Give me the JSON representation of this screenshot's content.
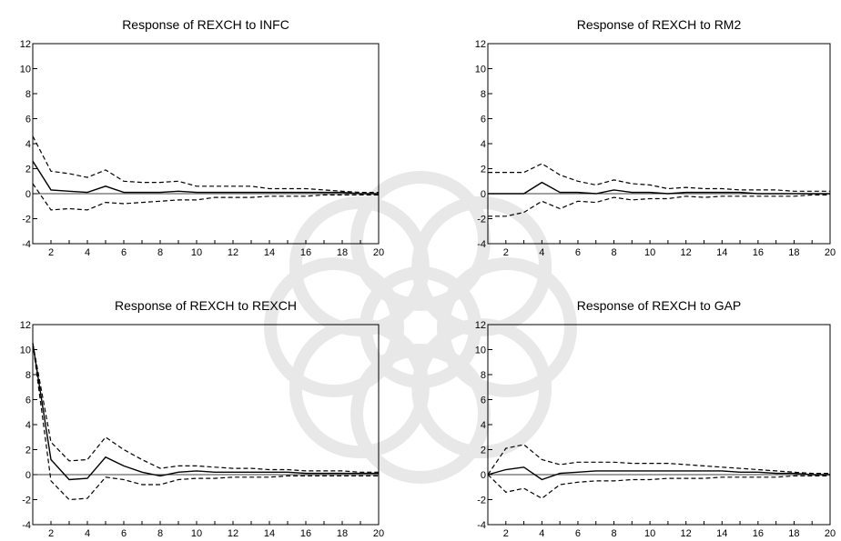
{
  "chart_data": [
    {
      "type": "line",
      "title": "Response of REXCH to INFC",
      "xlim": [
        1,
        20
      ],
      "ylim": [
        -4,
        12
      ],
      "xticks": [
        2,
        4,
        6,
        8,
        10,
        12,
        14,
        16,
        18,
        20
      ],
      "yticks": [
        -4,
        -2,
        0,
        2,
        4,
        6,
        8,
        10,
        12
      ],
      "grid": false,
      "x": [
        1,
        2,
        3,
        4,
        5,
        6,
        7,
        8,
        9,
        10,
        11,
        12,
        13,
        14,
        15,
        16,
        17,
        18,
        19,
        20
      ],
      "series": [
        {
          "style": "dashed",
          "values": [
            4.6,
            1.8,
            1.6,
            1.3,
            1.9,
            1.0,
            0.9,
            0.9,
            1.0,
            0.6,
            0.6,
            0.6,
            0.6,
            0.4,
            0.4,
            0.4,
            0.3,
            0.2,
            0.1,
            0.1
          ]
        },
        {
          "style": "solid",
          "values": [
            2.6,
            0.3,
            0.2,
            0.1,
            0.6,
            0.1,
            0.1,
            0.1,
            0.2,
            0.1,
            0.1,
            0.1,
            0.1,
            0.1,
            0.1,
            0.1,
            0.1,
            0.1,
            0.0,
            0.0
          ]
        },
        {
          "style": "dashed",
          "values": [
            0.8,
            -1.3,
            -1.2,
            -1.3,
            -0.7,
            -0.8,
            -0.7,
            -0.6,
            -0.5,
            -0.5,
            -0.3,
            -0.3,
            -0.3,
            -0.2,
            -0.2,
            -0.2,
            -0.1,
            -0.1,
            -0.1,
            -0.1
          ]
        }
      ]
    },
    {
      "type": "line",
      "title": "Response of REXCH to RM2",
      "xlim": [
        1,
        20
      ],
      "ylim": [
        -4,
        12
      ],
      "xticks": [
        2,
        4,
        6,
        8,
        10,
        12,
        14,
        16,
        18,
        20
      ],
      "yticks": [
        -4,
        -2,
        0,
        2,
        4,
        6,
        8,
        10,
        12
      ],
      "grid": false,
      "x": [
        1,
        2,
        3,
        4,
        5,
        6,
        7,
        8,
        9,
        10,
        11,
        12,
        13,
        14,
        15,
        16,
        17,
        18,
        19,
        20
      ],
      "series": [
        {
          "style": "dashed",
          "values": [
            1.7,
            1.7,
            1.7,
            2.4,
            1.5,
            1.0,
            0.7,
            1.1,
            0.8,
            0.7,
            0.4,
            0.5,
            0.4,
            0.4,
            0.3,
            0.3,
            0.3,
            0.2,
            0.2,
            0.2
          ]
        },
        {
          "style": "solid",
          "values": [
            0.0,
            0.0,
            0.0,
            0.9,
            0.1,
            0.1,
            0.0,
            0.3,
            0.1,
            0.1,
            0.0,
            0.1,
            0.1,
            0.1,
            0.1,
            0.0,
            0.0,
            0.0,
            0.0,
            0.0
          ]
        },
        {
          "style": "dashed",
          "values": [
            -1.8,
            -1.8,
            -1.5,
            -0.6,
            -1.2,
            -0.6,
            -0.7,
            -0.3,
            -0.5,
            -0.4,
            -0.4,
            -0.2,
            -0.3,
            -0.2,
            -0.2,
            -0.2,
            -0.2,
            -0.2,
            -0.1,
            -0.1
          ]
        }
      ]
    },
    {
      "type": "line",
      "title": "Response of REXCH to REXCH",
      "xlim": [
        1,
        20
      ],
      "ylim": [
        -4,
        12
      ],
      "xticks": [
        2,
        4,
        6,
        8,
        10,
        12,
        14,
        16,
        18,
        20
      ],
      "yticks": [
        -4,
        -2,
        0,
        2,
        4,
        6,
        8,
        10,
        12
      ],
      "grid": false,
      "x": [
        1,
        2,
        3,
        4,
        5,
        6,
        7,
        8,
        9,
        10,
        11,
        12,
        13,
        14,
        15,
        16,
        17,
        18,
        19,
        20
      ],
      "series": [
        {
          "style": "dashed",
          "values": [
            10.5,
            2.6,
            1.1,
            1.2,
            3.0,
            2.0,
            1.2,
            0.5,
            0.7,
            0.7,
            0.6,
            0.5,
            0.5,
            0.4,
            0.4,
            0.3,
            0.3,
            0.3,
            0.2,
            0.2
          ]
        },
        {
          "style": "solid",
          "values": [
            10.5,
            1.2,
            -0.4,
            -0.3,
            1.4,
            0.7,
            0.2,
            -0.1,
            0.2,
            0.3,
            0.2,
            0.2,
            0.2,
            0.2,
            0.2,
            0.1,
            0.1,
            0.1,
            0.1,
            0.1
          ]
        },
        {
          "style": "dashed",
          "values": [
            10.5,
            -0.5,
            -2.0,
            -1.9,
            -0.2,
            -0.4,
            -0.8,
            -0.8,
            -0.4,
            -0.3,
            -0.3,
            -0.2,
            -0.2,
            -0.2,
            -0.1,
            -0.1,
            -0.1,
            -0.1,
            -0.1,
            -0.1
          ]
        }
      ]
    },
    {
      "type": "line",
      "title": "Response of REXCH to GAP",
      "xlim": [
        1,
        20
      ],
      "ylim": [
        -4,
        12
      ],
      "xticks": [
        2,
        4,
        6,
        8,
        10,
        12,
        14,
        16,
        18,
        20
      ],
      "yticks": [
        -4,
        -2,
        0,
        2,
        4,
        6,
        8,
        10,
        12
      ],
      "grid": false,
      "x": [
        1,
        2,
        3,
        4,
        5,
        6,
        7,
        8,
        9,
        10,
        11,
        12,
        13,
        14,
        15,
        16,
        17,
        18,
        19,
        20
      ],
      "series": [
        {
          "style": "dashed",
          "values": [
            0.0,
            2.1,
            2.4,
            1.2,
            0.8,
            1.0,
            1.0,
            1.0,
            0.9,
            0.9,
            0.9,
            0.8,
            0.7,
            0.6,
            0.5,
            0.4,
            0.3,
            0.2,
            0.1,
            0.1
          ]
        },
        {
          "style": "solid",
          "values": [
            0.0,
            0.4,
            0.6,
            -0.4,
            0.1,
            0.2,
            0.3,
            0.3,
            0.3,
            0.3,
            0.3,
            0.3,
            0.3,
            0.3,
            0.2,
            0.2,
            0.1,
            0.1,
            0.0,
            0.0
          ]
        },
        {
          "style": "dashed",
          "values": [
            0.0,
            -1.4,
            -1.1,
            -1.9,
            -0.8,
            -0.6,
            -0.5,
            -0.5,
            -0.4,
            -0.4,
            -0.3,
            -0.3,
            -0.3,
            -0.2,
            -0.2,
            -0.2,
            -0.2,
            -0.1,
            -0.1,
            -0.1
          ]
        }
      ]
    }
  ]
}
